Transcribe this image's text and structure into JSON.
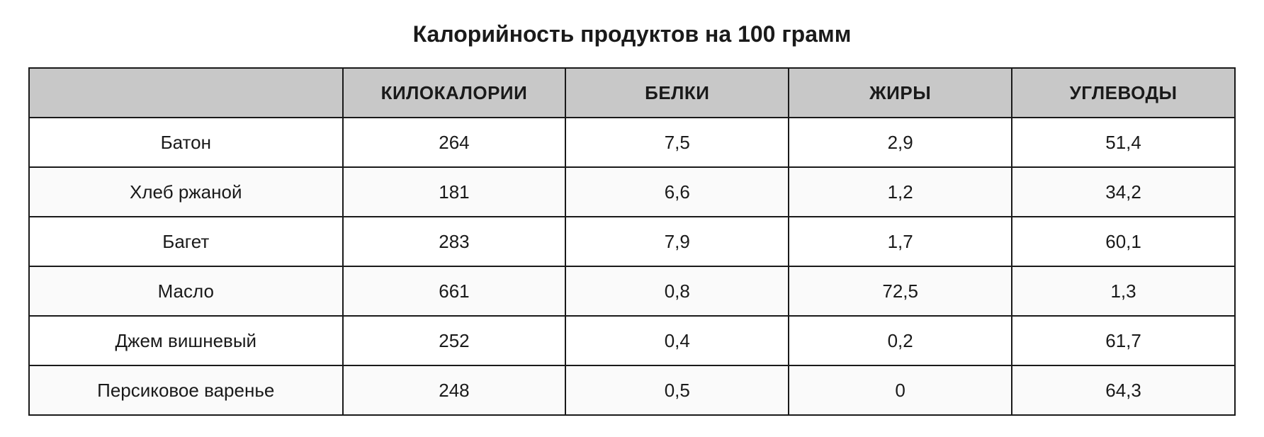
{
  "title": "Калорийность продуктов на 100 грамм",
  "table": {
    "type": "table",
    "header_bg_color": "#c8c8c8",
    "border_color": "#1a1a1a",
    "row_bg_odd": "#ffffff",
    "row_bg_even": "#fafafa",
    "text_color": "#1a1a1a",
    "title_fontsize": 32,
    "header_fontsize": 26,
    "cell_fontsize": 26,
    "columns": [
      {
        "label": "",
        "width_pct": 26,
        "align": "center"
      },
      {
        "label": "КИЛОКАЛОРИИ",
        "width_pct": 18.5,
        "align": "center"
      },
      {
        "label": "БЕЛКИ",
        "width_pct": 18.5,
        "align": "center"
      },
      {
        "label": "ЖИРЫ",
        "width_pct": 18.5,
        "align": "center"
      },
      {
        "label": "УГЛЕВОДЫ",
        "width_pct": 18.5,
        "align": "center"
      }
    ],
    "rows": [
      {
        "product": "Батон",
        "kcal": "264",
        "protein": "7,5",
        "fat": "2,9",
        "carbs": "51,4"
      },
      {
        "product": "Хлеб ржаной",
        "kcal": "181",
        "protein": "6,6",
        "fat": "1,2",
        "carbs": "34,2"
      },
      {
        "product": "Багет",
        "kcal": "283",
        "protein": "7,9",
        "fat": "1,7",
        "carbs": "60,1"
      },
      {
        "product": "Масло",
        "kcal": "661",
        "protein": "0,8",
        "fat": "72,5",
        "carbs": "1,3"
      },
      {
        "product": "Джем вишневый",
        "kcal": "252",
        "protein": "0,4",
        "fat": "0,2",
        "carbs": "61,7"
      },
      {
        "product": "Персиковое варенье",
        "kcal": "248",
        "protein": "0,5",
        "fat": "0",
        "carbs": "64,3"
      }
    ]
  }
}
